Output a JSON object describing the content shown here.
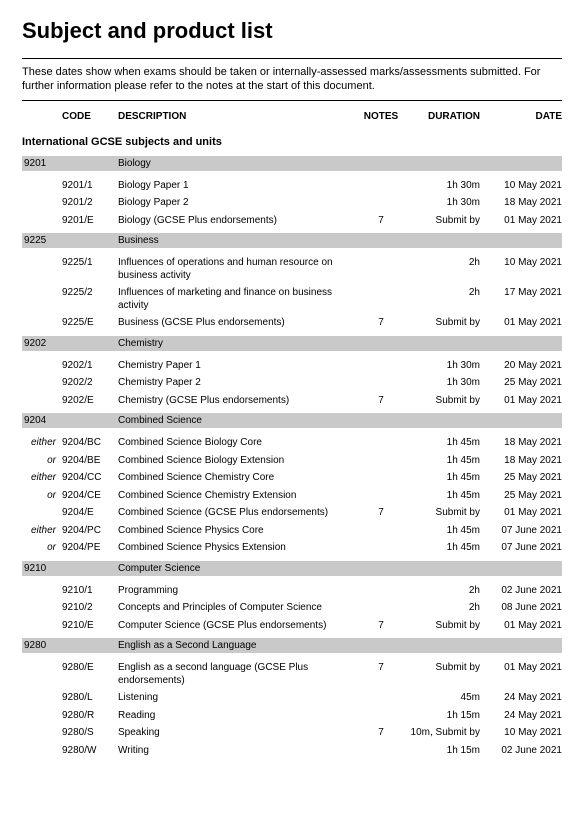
{
  "page": {
    "title": "Subject and product list",
    "intro": "These dates show when exams should be taken or internally-assessed marks/assessments submitted.  For further information please refer to the notes at the start of this document.",
    "headers": {
      "code": "CODE",
      "description": "DESCRIPTION",
      "notes": "NOTES",
      "duration": "DURATION",
      "date": "DATE"
    },
    "section_title": "International GCSE subjects and units"
  },
  "colors": {
    "bar": "#c9c9c9",
    "rule": "#000000",
    "bg": "#ffffff"
  },
  "subjects": [
    {
      "code": "9201",
      "name": "Biology",
      "rows": [
        {
          "prefix": "",
          "code": "9201/1",
          "desc": "Biology Paper 1",
          "notes": "",
          "duration": "1h 30m",
          "date": "10 May 2021"
        },
        {
          "prefix": "",
          "code": "9201/2",
          "desc": "Biology Paper 2",
          "notes": "",
          "duration": "1h 30m",
          "date": "18 May 2021"
        },
        {
          "prefix": "",
          "code": "9201/E",
          "desc": "Biology (GCSE Plus endorsements)",
          "notes": "7",
          "duration": "Submit by",
          "date": "01 May 2021"
        }
      ]
    },
    {
      "code": "9225",
      "name": "Business",
      "rows": [
        {
          "prefix": "",
          "code": "9225/1",
          "desc": "Influences of operations and human resource on business activity",
          "notes": "",
          "duration": "2h",
          "date": "10 May 2021"
        },
        {
          "prefix": "",
          "code": "9225/2",
          "desc": "Influences of marketing and finance on business activity",
          "notes": "",
          "duration": "2h",
          "date": "17 May 2021"
        },
        {
          "prefix": "",
          "code": "9225/E",
          "desc": "Business (GCSE Plus endorsements)",
          "notes": "7",
          "duration": "Submit by",
          "date": "01 May 2021"
        }
      ]
    },
    {
      "code": "9202",
      "name": "Chemistry",
      "rows": [
        {
          "prefix": "",
          "code": "9202/1",
          "desc": "Chemistry Paper 1",
          "notes": "",
          "duration": "1h 30m",
          "date": "20 May 2021"
        },
        {
          "prefix": "",
          "code": "9202/2",
          "desc": "Chemistry Paper 2",
          "notes": "",
          "duration": "1h 30m",
          "date": "25 May 2021"
        },
        {
          "prefix": "",
          "code": "9202/E",
          "desc": "Chemistry (GCSE Plus endorsements)",
          "notes": "7",
          "duration": "Submit by",
          "date": "01 May 2021"
        }
      ]
    },
    {
      "code": "9204",
      "name": "Combined Science",
      "rows": [
        {
          "prefix": "either",
          "code": "9204/BC",
          "desc": "Combined Science Biology Core",
          "notes": "",
          "duration": "1h 45m",
          "date": "18 May 2021"
        },
        {
          "prefix": "or",
          "code": "9204/BE",
          "desc": "Combined Science Biology Extension",
          "notes": "",
          "duration": "1h 45m",
          "date": "18 May 2021"
        },
        {
          "prefix": "either",
          "code": "9204/CC",
          "desc": "Combined Science Chemistry Core",
          "notes": "",
          "duration": "1h 45m",
          "date": "25 May 2021"
        },
        {
          "prefix": "or",
          "code": "9204/CE",
          "desc": "Combined Science Chemistry Extension",
          "notes": "",
          "duration": "1h 45m",
          "date": "25 May 2021"
        },
        {
          "prefix": "",
          "code": "9204/E",
          "desc": "Combined Science (GCSE Plus endorsements)",
          "notes": "7",
          "duration": "Submit by",
          "date": "01 May 2021"
        },
        {
          "prefix": "either",
          "code": "9204/PC",
          "desc": "Combined Science Physics Core",
          "notes": "",
          "duration": "1h 45m",
          "date": "07 June 2021"
        },
        {
          "prefix": "or",
          "code": "9204/PE",
          "desc": "Combined Science Physics Extension",
          "notes": "",
          "duration": "1h 45m",
          "date": "07 June 2021"
        }
      ]
    },
    {
      "code": "9210",
      "name": "Computer Science",
      "rows": [
        {
          "prefix": "",
          "code": "9210/1",
          "desc": "Programming",
          "notes": "",
          "duration": "2h",
          "date": "02 June 2021"
        },
        {
          "prefix": "",
          "code": "9210/2",
          "desc": "Concepts and Principles of Computer Science",
          "notes": "",
          "duration": "2h",
          "date": "08 June 2021"
        },
        {
          "prefix": "",
          "code": "9210/E",
          "desc": "Computer Science (GCSE Plus endorsements)",
          "notes": "7",
          "duration": "Submit by",
          "date": "01 May 2021"
        }
      ]
    },
    {
      "code": "9280",
      "name": "English as a Second Language",
      "rows": [
        {
          "prefix": "",
          "code": "9280/E",
          "desc": "English as a second language (GCSE Plus endorsements)",
          "notes": "7",
          "duration": "Submit by",
          "date": "01 May 2021"
        },
        {
          "prefix": "",
          "code": "9280/L",
          "desc": "Listening",
          "notes": "",
          "duration": "45m",
          "date": "24 May 2021"
        },
        {
          "prefix": "",
          "code": "9280/R",
          "desc": "Reading",
          "notes": "",
          "duration": "1h 15m",
          "date": "24 May 2021"
        },
        {
          "prefix": "",
          "code": "9280/S",
          "desc": "Speaking",
          "notes": "7",
          "duration": "10m, Submit by",
          "date": "10 May 2021"
        },
        {
          "prefix": "",
          "code": "9280/W",
          "desc": "Writing",
          "notes": "",
          "duration": "1h 15m",
          "date": "02 June 2021"
        }
      ]
    }
  ]
}
